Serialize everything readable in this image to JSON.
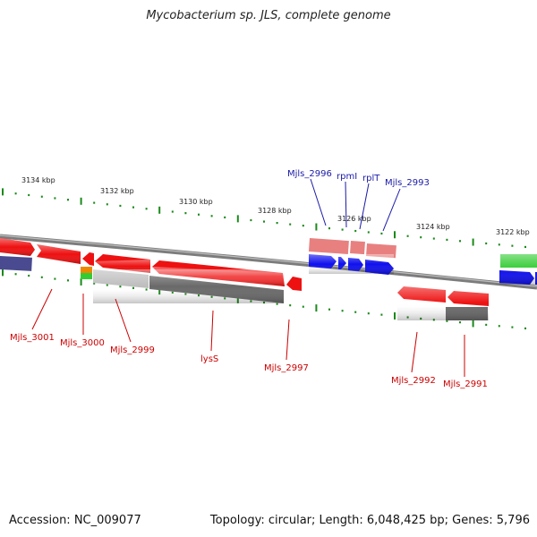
{
  "title": "Mycobacterium sp. JLS, complete genome",
  "footer": {
    "accession": "Accession: NC_009077",
    "summary": "Topology: circular; Length: 6,048,425 bp; Genes: 5,796"
  },
  "colors": {
    "backbone": "#8a8a8a",
    "tick": "#1a8a1a",
    "gene_red": "#ee1111",
    "gene_pink": "#e88080",
    "gene_blue": "#1111ee",
    "gene_navy": "#4a4a90",
    "gene_grey": "#6a6a6a",
    "gene_lightgrey": "#bdbdbd",
    "gene_green": "#33cc33",
    "gene_orange": "#ee8800",
    "label_red": "#cc0000",
    "label_blue": "#1a1aa8"
  },
  "kbp_labels": [
    "3134 kbp",
    "3132 kbp",
    "3130 kbp",
    "3128 kbp",
    "3126 kbp",
    "3124 kbp",
    "3122 kbp"
  ],
  "gene_labels_top": [
    "Mjls_2996",
    "rpmI",
    "rplT",
    "Mjls_2993"
  ],
  "gene_labels_bottom": [
    "Mjls_3001",
    "Mjls_3000",
    "Mjls_2999",
    "lysS",
    "Mjls_2997",
    "Mjls_2992",
    "Mjls_2991"
  ]
}
